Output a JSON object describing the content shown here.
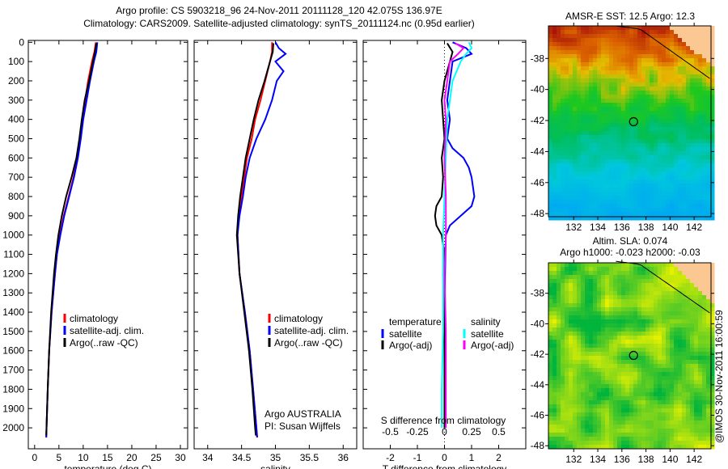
{
  "title_line1": "Argo profile: CS 5903218_96 24-Nov-2011 20111128_120 42.075S 136.97E",
  "title_line2": "Climatology: CARS2009. Satellite-adjusted climatology: synTS_20111124.nc (0.95d earlier)",
  "credit": "@IMOS 30-Nov-2011 16:00:59",
  "chart_data": [
    {
      "type": "line",
      "name": "temperature",
      "xlabel": "temperature (deg C)",
      "xlim": [
        -1.3,
        31.5
      ],
      "ylim": [
        0,
        2100
      ],
      "xticks": [
        0,
        5,
        10,
        15,
        20,
        25,
        30
      ],
      "yticks": [
        0,
        100,
        200,
        300,
        400,
        500,
        600,
        700,
        800,
        900,
        1000,
        1100,
        1200,
        1300,
        1400,
        1500,
        1600,
        1700,
        1800,
        1900,
        2000
      ],
      "legend": [
        "climatology",
        "satellite-adj. clim.",
        "Argo(..raw -QC)"
      ],
      "series": [
        {
          "name": "climatology",
          "color": "#ff0000",
          "depth": [
            0,
            50,
            100,
            200,
            300,
            400,
            500,
            600,
            700,
            800,
            900,
            1000,
            1100,
            1200,
            1400,
            1600,
            1800,
            2000,
            2050
          ],
          "values": [
            12.6,
            12.3,
            11.8,
            11.0,
            10.4,
            9.8,
            9.3,
            8.8,
            8.0,
            7.0,
            6.0,
            5.2,
            4.6,
            4.2,
            3.5,
            3.0,
            2.7,
            2.45,
            2.4
          ]
        },
        {
          "name": "satellite-adj. clim.",
          "color": "#0000ff",
          "depth": [
            0,
            50,
            100,
            200,
            300,
            400,
            500,
            600,
            700,
            800,
            900,
            1000,
            1100,
            1200,
            1400,
            1600,
            1800,
            2000,
            2050
          ],
          "values": [
            12.9,
            12.7,
            12.2,
            11.4,
            10.7,
            10.0,
            9.5,
            8.9,
            8.1,
            7.1,
            6.1,
            5.3,
            4.6,
            4.2,
            3.5,
            3.0,
            2.7,
            2.45,
            2.4
          ]
        },
        {
          "name": "Argo(..raw -QC)",
          "color": "#000000",
          "depth": [
            5,
            50,
            100,
            200,
            300,
            400,
            500,
            600,
            700,
            800,
            900,
            1000,
            1100,
            1200,
            1400,
            1600,
            1800,
            2000,
            2040
          ],
          "values": [
            12.7,
            12.4,
            12.0,
            11.2,
            10.3,
            9.7,
            9.2,
            8.6,
            7.6,
            6.5,
            5.6,
            4.9,
            4.4,
            4.0,
            3.4,
            3.0,
            2.7,
            2.45,
            2.4
          ]
        }
      ]
    },
    {
      "type": "line",
      "name": "salinity",
      "xlabel": "salinity",
      "xlim": [
        33.8,
        36.2
      ],
      "ylim": [
        0,
        2100
      ],
      "xticks": [
        34,
        34.5,
        35,
        35.5,
        36
      ],
      "legend": [
        "climatology",
        "satellite-adj. clim.",
        "Argo(..raw -QC)"
      ],
      "annotation": [
        "Argo AUSTRALIA",
        "PI: Susan Wijffels"
      ],
      "series": [
        {
          "name": "climatology",
          "color": "#ff0000",
          "depth": [
            0,
            50,
            100,
            200,
            300,
            400,
            500,
            600,
            700,
            800,
            900,
            1000,
            1200,
            1400,
            1600,
            1800,
            2000,
            2050
          ],
          "values": [
            34.95,
            34.95,
            34.92,
            34.85,
            34.78,
            34.7,
            34.65,
            34.58,
            34.54,
            34.5,
            34.46,
            34.44,
            34.47,
            34.55,
            34.62,
            34.67,
            34.72,
            34.73
          ]
        },
        {
          "name": "satellite-adj. clim.",
          "color": "#0000ff",
          "depth": [
            0,
            30,
            60,
            100,
            150,
            200,
            300,
            400,
            500,
            600,
            700,
            800,
            900,
            1000,
            1200,
            1400,
            1600,
            1800,
            2000,
            2050
          ],
          "values": [
            35.0,
            35.05,
            35.15,
            35.0,
            35.12,
            35.02,
            34.95,
            34.85,
            34.72,
            34.62,
            34.56,
            34.52,
            34.47,
            34.44,
            34.47,
            34.55,
            34.62,
            34.67,
            34.72,
            34.73
          ]
        },
        {
          "name": "Argo(..raw -QC)",
          "color": "#000000",
          "depth": [
            5,
            50,
            100,
            200,
            300,
            400,
            500,
            600,
            700,
            800,
            900,
            1000,
            1200,
            1400,
            1600,
            1800,
            2000,
            2040
          ],
          "values": [
            34.97,
            34.96,
            34.92,
            34.84,
            34.75,
            34.68,
            34.62,
            34.56,
            34.52,
            34.48,
            34.45,
            34.43,
            34.47,
            34.54,
            34.61,
            34.66,
            34.7,
            34.71
          ]
        }
      ]
    },
    {
      "type": "line",
      "name": "difference",
      "xlabel": "T difference from climatology",
      "xlabel_top": "S difference from climatology",
      "xlim": [
        -3,
        3
      ],
      "xticks": [
        -2,
        -1,
        0,
        1,
        2
      ],
      "xticks_top_labels": [
        "-0.5",
        "-0.25",
        "0",
        "0.25",
        "0.5"
      ],
      "ylim": [
        0,
        2100
      ],
      "legend": {
        "temperature": "temperature",
        "salinity": "salinity",
        "items": [
          "satellite",
          "Argo(-adj)",
          "satellite",
          "Argo(-adj)"
        ]
      },
      "series": [
        {
          "name": "T satellite",
          "color": "#0000ff",
          "depth": [
            0,
            30,
            60,
            100,
            200,
            300,
            400,
            500,
            550,
            600,
            650,
            700,
            750,
            800,
            850,
            900,
            950,
            1000,
            1200,
            1500,
            2000
          ],
          "values": [
            0.3,
            0.8,
            1.0,
            0.3,
            0.2,
            0.1,
            0.2,
            0.1,
            0.3,
            0.7,
            0.9,
            1.0,
            1.05,
            1.1,
            1.0,
            0.6,
            0.2,
            0.05,
            0.02,
            0.01,
            0.0
          ]
        },
        {
          "name": "T Argo(-adj)",
          "color": "#000000",
          "depth": [
            5,
            50,
            100,
            200,
            300,
            400,
            500,
            600,
            700,
            800,
            850,
            900,
            950,
            1000,
            1100,
            1200,
            1500,
            2000
          ],
          "values": [
            0.1,
            0.3,
            0.2,
            0.0,
            -0.1,
            -0.05,
            0.0,
            -0.1,
            -0.05,
            -0.1,
            -0.3,
            -0.35,
            -0.3,
            -0.1,
            0.0,
            -0.05,
            0.0,
            0.0
          ]
        },
        {
          "name": "S satellite",
          "color": "#00ffff",
          "depth": [
            0,
            30,
            60,
            100,
            200,
            300,
            400,
            600,
            800,
            1000,
            1200,
            1500,
            1800,
            2000
          ],
          "values": [
            0.9,
            1.0,
            0.8,
            0.6,
            0.3,
            0.2,
            0.1,
            0.05,
            0.0,
            -0.05,
            -0.05,
            -0.05,
            -0.1,
            -0.1
          ]
        },
        {
          "name": "S Argo(-adj)",
          "color": "#ff00ff",
          "depth": [
            5,
            30,
            60,
            100,
            200,
            300,
            400,
            600,
            800,
            1000,
            1200,
            1500,
            1800,
            2000
          ],
          "values": [
            0.4,
            0.7,
            0.5,
            0.2,
            0.1,
            0.0,
            0.05,
            0.0,
            0.05,
            0.05,
            0.0,
            0.05,
            0.05,
            0.05
          ]
        }
      ]
    },
    {
      "type": "heatmap",
      "name": "sst-map",
      "title": "AMSR-E SST: 12.5 Argo: 12.3",
      "xticks": [
        132,
        134,
        136,
        138,
        140,
        142
      ],
      "yticks": [
        -38,
        -40,
        -42,
        -44,
        -46,
        -48
      ],
      "xlim": [
        129.9,
        143.4
      ],
      "ylim": [
        -48.2,
        -35.9
      ],
      "argo_position": [
        136.97,
        -42.075
      ]
    },
    {
      "type": "heatmap",
      "name": "sla-map",
      "title_line1": "Altim. SLA: 0.074",
      "title_line2": "Argo h1000: -0.023 h2000: -0.03",
      "xticks": [
        132,
        134,
        136,
        138,
        140,
        142
      ],
      "yticks": [
        -38,
        -40,
        -42,
        -44,
        -46,
        -48
      ],
      "xlim": [
        129.9,
        143.4
      ],
      "ylim": [
        -48.2,
        -36.0
      ],
      "argo_position": [
        136.97,
        -42.075
      ]
    }
  ]
}
